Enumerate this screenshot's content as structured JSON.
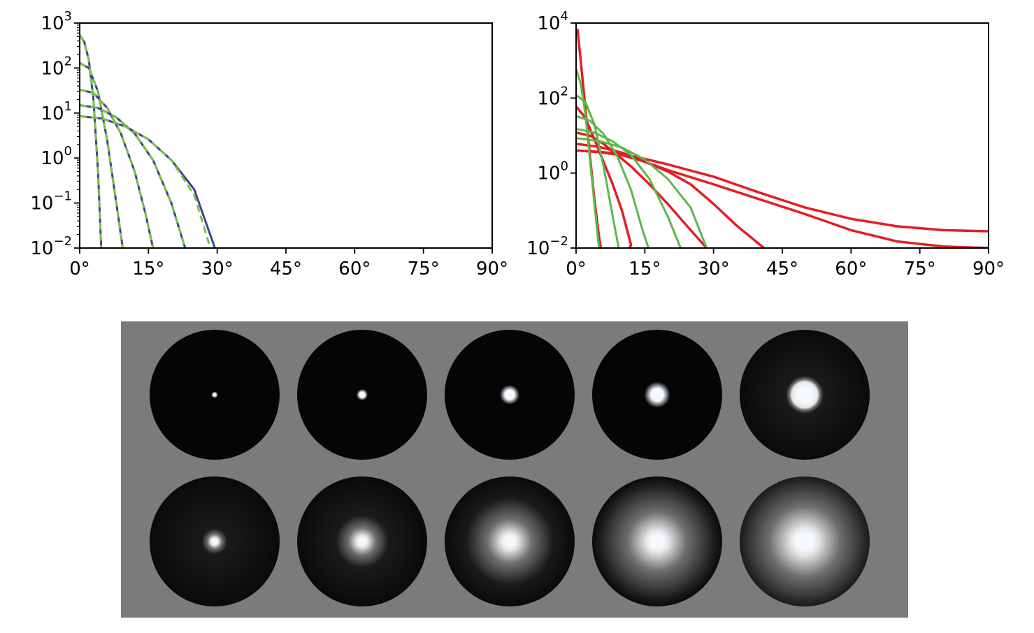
{
  "chart_data": [
    {
      "type": "line",
      "yscale": "log",
      "xlim": [
        0,
        90
      ],
      "ylim": [
        0.01,
        1000
      ],
      "x_tick_values": [
        0,
        15,
        30,
        45,
        60,
        75,
        90
      ],
      "x_tick_labels": [
        "0°",
        "15°",
        "30°",
        "45°",
        "60°",
        "75°",
        "90°"
      ],
      "y_tick_values": [
        0.01,
        0.1,
        1,
        10,
        100,
        1000
      ],
      "y_tick_bases": [
        "10",
        "10",
        "10",
        "10",
        "10",
        "10"
      ],
      "y_tick_exponents": [
        "−2",
        "−1",
        "0",
        "1",
        "2",
        "3"
      ],
      "minor_y_ticks": true,
      "grid": false,
      "series": [
        {
          "color": "#3b4494",
          "style": "solid",
          "width": 3,
          "x": [
            0,
            1,
            2,
            3,
            4,
            4.7
          ],
          "y": [
            540,
            380,
            150,
            20,
            0.5,
            0.01
          ]
        },
        {
          "color": "#7dc142",
          "style": "dashed",
          "width": 3,
          "x": [
            0,
            1,
            2,
            3,
            4,
            4.7
          ],
          "y": [
            540,
            380,
            150,
            20,
            0.5,
            0.01
          ]
        },
        {
          "color": "#3b4494",
          "style": "solid",
          "width": 3,
          "x": [
            0,
            2,
            4,
            6,
            8,
            9.4
          ],
          "y": [
            130,
            100,
            30,
            2.5,
            0.1,
            0.01
          ]
        },
        {
          "color": "#7dc142",
          "style": "dashed",
          "width": 3,
          "x": [
            0,
            2,
            4,
            6,
            8,
            9.4
          ],
          "y": [
            130,
            100,
            30,
            2.5,
            0.1,
            0.01
          ]
        },
        {
          "color": "#3b4494",
          "style": "solid",
          "width": 3,
          "x": [
            0,
            3,
            6,
            9,
            12,
            14.5,
            16
          ],
          "y": [
            33,
            28,
            13,
            3.5,
            0.5,
            0.05,
            0.01
          ]
        },
        {
          "color": "#7dc142",
          "style": "dashed",
          "width": 3,
          "x": [
            0,
            3,
            6,
            9,
            12,
            14.5,
            16
          ],
          "y": [
            33,
            28,
            13,
            3.5,
            0.5,
            0.05,
            0.01
          ]
        },
        {
          "color": "#3b4494",
          "style": "solid",
          "width": 3,
          "x": [
            0,
            4,
            8,
            12,
            16,
            20,
            23
          ],
          "y": [
            15,
            13,
            8,
            3.5,
            0.9,
            0.1,
            0.01
          ]
        },
        {
          "color": "#7dc142",
          "style": "dashed",
          "width": 3,
          "x": [
            0,
            4,
            8,
            12,
            16,
            20,
            23
          ],
          "y": [
            15,
            13,
            8,
            3.5,
            0.9,
            0.1,
            0.01
          ]
        },
        {
          "color": "#3b4494",
          "style": "solid",
          "width": 3,
          "x": [
            0,
            5,
            10,
            15,
            20,
            25,
            29.5
          ],
          "y": [
            8.5,
            7.5,
            5,
            2.6,
            0.9,
            0.2,
            0.01
          ]
        },
        {
          "color": "#7dc142",
          "style": "dashed",
          "width": 3,
          "x": [
            0,
            5,
            10,
            15,
            20,
            25,
            28.5
          ],
          "y": [
            8.5,
            7.5,
            5,
            2.6,
            0.9,
            0.15,
            0.01
          ]
        }
      ]
    },
    {
      "type": "line",
      "yscale": "log",
      "xlim": [
        0,
        90
      ],
      "ylim": [
        0.01,
        10000
      ],
      "x_tick_values": [
        0,
        15,
        30,
        45,
        60,
        75,
        90
      ],
      "x_tick_labels": [
        "0°",
        "15°",
        "30°",
        "45°",
        "60°",
        "75°",
        "90°"
      ],
      "y_tick_values": [
        0.01,
        1,
        100,
        10000
      ],
      "y_tick_bases": [
        "10",
        "10",
        "10",
        "10"
      ],
      "y_tick_exponents": [
        "−2",
        "0",
        "2",
        "4"
      ],
      "minor_y_ticks": false,
      "grid": false,
      "series": [
        {
          "color": "#e31e26",
          "style": "solid",
          "width": 3.5,
          "x": [
            0.3,
            1,
            2,
            3,
            4,
            5,
            5.4
          ],
          "y": [
            7000,
            1000,
            60,
            3,
            0.2,
            0.02,
            0.01
          ]
        },
        {
          "color": "#e31e26",
          "style": "solid",
          "width": 3.5,
          "x": [
            0,
            2,
            4,
            6,
            8,
            10,
            12,
            11.6
          ],
          "y": [
            60,
            30,
            8,
            2,
            0.5,
            0.1,
            0.012,
            0.01
          ]
        },
        {
          "color": "#e31e26",
          "style": "solid",
          "width": 3.5,
          "x": [
            0,
            3,
            6,
            9,
            12,
            16,
            20,
            25,
            28.5
          ],
          "y": [
            12,
            10,
            6,
            3,
            1.5,
            0.5,
            0.15,
            0.03,
            0.01
          ]
        },
        {
          "color": "#e31e26",
          "style": "solid",
          "width": 3.5,
          "x": [
            0,
            5,
            10,
            15,
            20,
            25,
            30,
            35,
            41
          ],
          "y": [
            6,
            5,
            3.5,
            2,
            1.1,
            0.5,
            0.15,
            0.04,
            0.01
          ]
        },
        {
          "color": "#e31e26",
          "style": "solid",
          "width": 3.5,
          "x": [
            0,
            5,
            10,
            15,
            20,
            30,
            40,
            50,
            60,
            70,
            80,
            90
          ],
          "y": [
            4,
            3.6,
            3,
            2,
            1.2,
            0.5,
            0.2,
            0.08,
            0.03,
            0.015,
            0.011,
            0.01
          ]
        },
        {
          "color": "#e31e26",
          "style": "solid",
          "width": 3.5,
          "x": [
            0,
            5,
            10,
            15,
            20,
            30,
            40,
            50,
            60,
            70,
            80,
            90
          ],
          "y": [
            4,
            3.7,
            3.2,
            2.4,
            1.7,
            0.8,
            0.3,
            0.12,
            0.06,
            0.038,
            0.03,
            0.028
          ]
        },
        {
          "color": "#5cb848",
          "style": "solid",
          "width": 3,
          "x": [
            0,
            1,
            2,
            3,
            4,
            5
          ],
          "y": [
            600,
            250,
            40,
            2.5,
            0.15,
            0.01
          ]
        },
        {
          "color": "#5cb848",
          "style": "solid",
          "width": 3,
          "x": [
            0,
            2,
            4,
            6,
            8,
            9.3
          ],
          "y": [
            120,
            80,
            20,
            1.5,
            0.07,
            0.01
          ]
        },
        {
          "color": "#5cb848",
          "style": "solid",
          "width": 3,
          "x": [
            0,
            3,
            6,
            9,
            12,
            14.5,
            15.8
          ],
          "y": [
            33,
            25,
            11,
            2.8,
            0.35,
            0.03,
            0.01
          ]
        },
        {
          "color": "#5cb848",
          "style": "solid",
          "width": 3,
          "x": [
            0,
            4,
            8,
            12,
            16,
            20,
            22.8
          ],
          "y": [
            15,
            12,
            7,
            3,
            0.7,
            0.07,
            0.01
          ]
        },
        {
          "color": "#5cb848",
          "style": "solid",
          "width": 3,
          "x": [
            0,
            5,
            10,
            15,
            20,
            25,
            28.5
          ],
          "y": [
            8.5,
            7.2,
            4.8,
            2.3,
            0.7,
            0.12,
            0.01
          ]
        }
      ]
    },
    {
      "type": "image-grid",
      "rows": 2,
      "columns": 5,
      "background_color": "#7b7b7b",
      "sphere_color": "#050505",
      "highlight_color": "#f4f8ff",
      "rows_data": [
        {
          "highlight_fraction": [
            0.04,
            0.07,
            0.12,
            0.16,
            0.2
          ],
          "glow_fraction": [
            0,
            0,
            0,
            0,
            0.1
          ]
        },
        {
          "highlight_fraction": [
            0.06,
            0.09,
            0.13,
            0.17,
            0.21
          ],
          "glow_fraction": [
            0.15,
            0.35,
            0.6,
            0.8,
            0.95
          ]
        }
      ]
    }
  ]
}
